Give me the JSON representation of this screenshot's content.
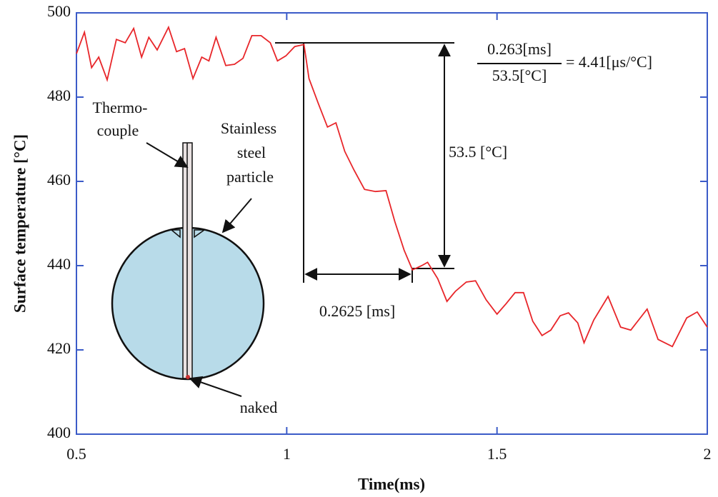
{
  "chart_data": {
    "type": "line",
    "x_label": "Time(ms)",
    "y_label": "Surface temperature [°C]",
    "xlim": [
      0.5,
      2
    ],
    "xticks": [
      0.5,
      1,
      1.5,
      2
    ],
    "ylim": [
      400,
      500
    ],
    "yticks": [
      400,
      420,
      440,
      460,
      480,
      500
    ],
    "color": "#e8262a",
    "x": [
      0.5,
      0.519,
      0.536,
      0.553,
      0.573,
      0.595,
      0.616,
      0.636,
      0.655,
      0.672,
      0.692,
      0.719,
      0.738,
      0.757,
      0.777,
      0.798,
      0.815,
      0.832,
      0.855,
      0.876,
      0.896,
      0.917,
      0.939,
      0.961,
      0.978,
      0.998,
      1.019,
      1.041,
      1.053,
      1.075,
      1.097,
      1.117,
      1.138,
      1.16,
      1.185,
      1.211,
      1.236,
      1.257,
      1.279,
      1.299,
      1.321,
      1.335,
      1.359,
      1.381,
      1.401,
      1.427,
      1.449,
      1.474,
      1.5,
      1.522,
      1.543,
      1.563,
      1.585,
      1.607,
      1.628,
      1.65,
      1.67,
      1.692,
      1.707,
      1.73,
      1.764,
      1.794,
      1.818,
      1.857,
      1.883,
      1.917,
      1.951,
      1.976,
      2.0
    ],
    "values": [
      490.3,
      495.4,
      487.0,
      489.5,
      484.1,
      493.7,
      492.9,
      496.3,
      489.5,
      494.2,
      491.2,
      496.6,
      490.8,
      491.5,
      484.4,
      489.5,
      488.6,
      494.2,
      487.5,
      487.8,
      489.2,
      494.6,
      494.6,
      492.9,
      488.6,
      489.8,
      492.0,
      492.5,
      484.4,
      478.5,
      472.9,
      473.9,
      467.1,
      462.7,
      458.1,
      457.6,
      457.8,
      450.5,
      443.7,
      439.0,
      440.0,
      440.8,
      436.9,
      431.5,
      433.9,
      436.1,
      436.4,
      431.9,
      428.5,
      431.0,
      433.6,
      433.6,
      426.8,
      423.4,
      424.7,
      428.1,
      428.8,
      426.4,
      421.7,
      427.1,
      432.7,
      425.4,
      424.7,
      429.7,
      422.5,
      420.8,
      427.6,
      429.0,
      425.4
    ],
    "annotations": [
      "Thermo-",
      "couple",
      "Stainless",
      "steel",
      "particle",
      "naked",
      "53.5 [°C]",
      "0.2625 [ms]",
      "0.263[ms]",
      "53.5[°C]",
      "= 4.41[μs/°C]"
    ]
  }
}
